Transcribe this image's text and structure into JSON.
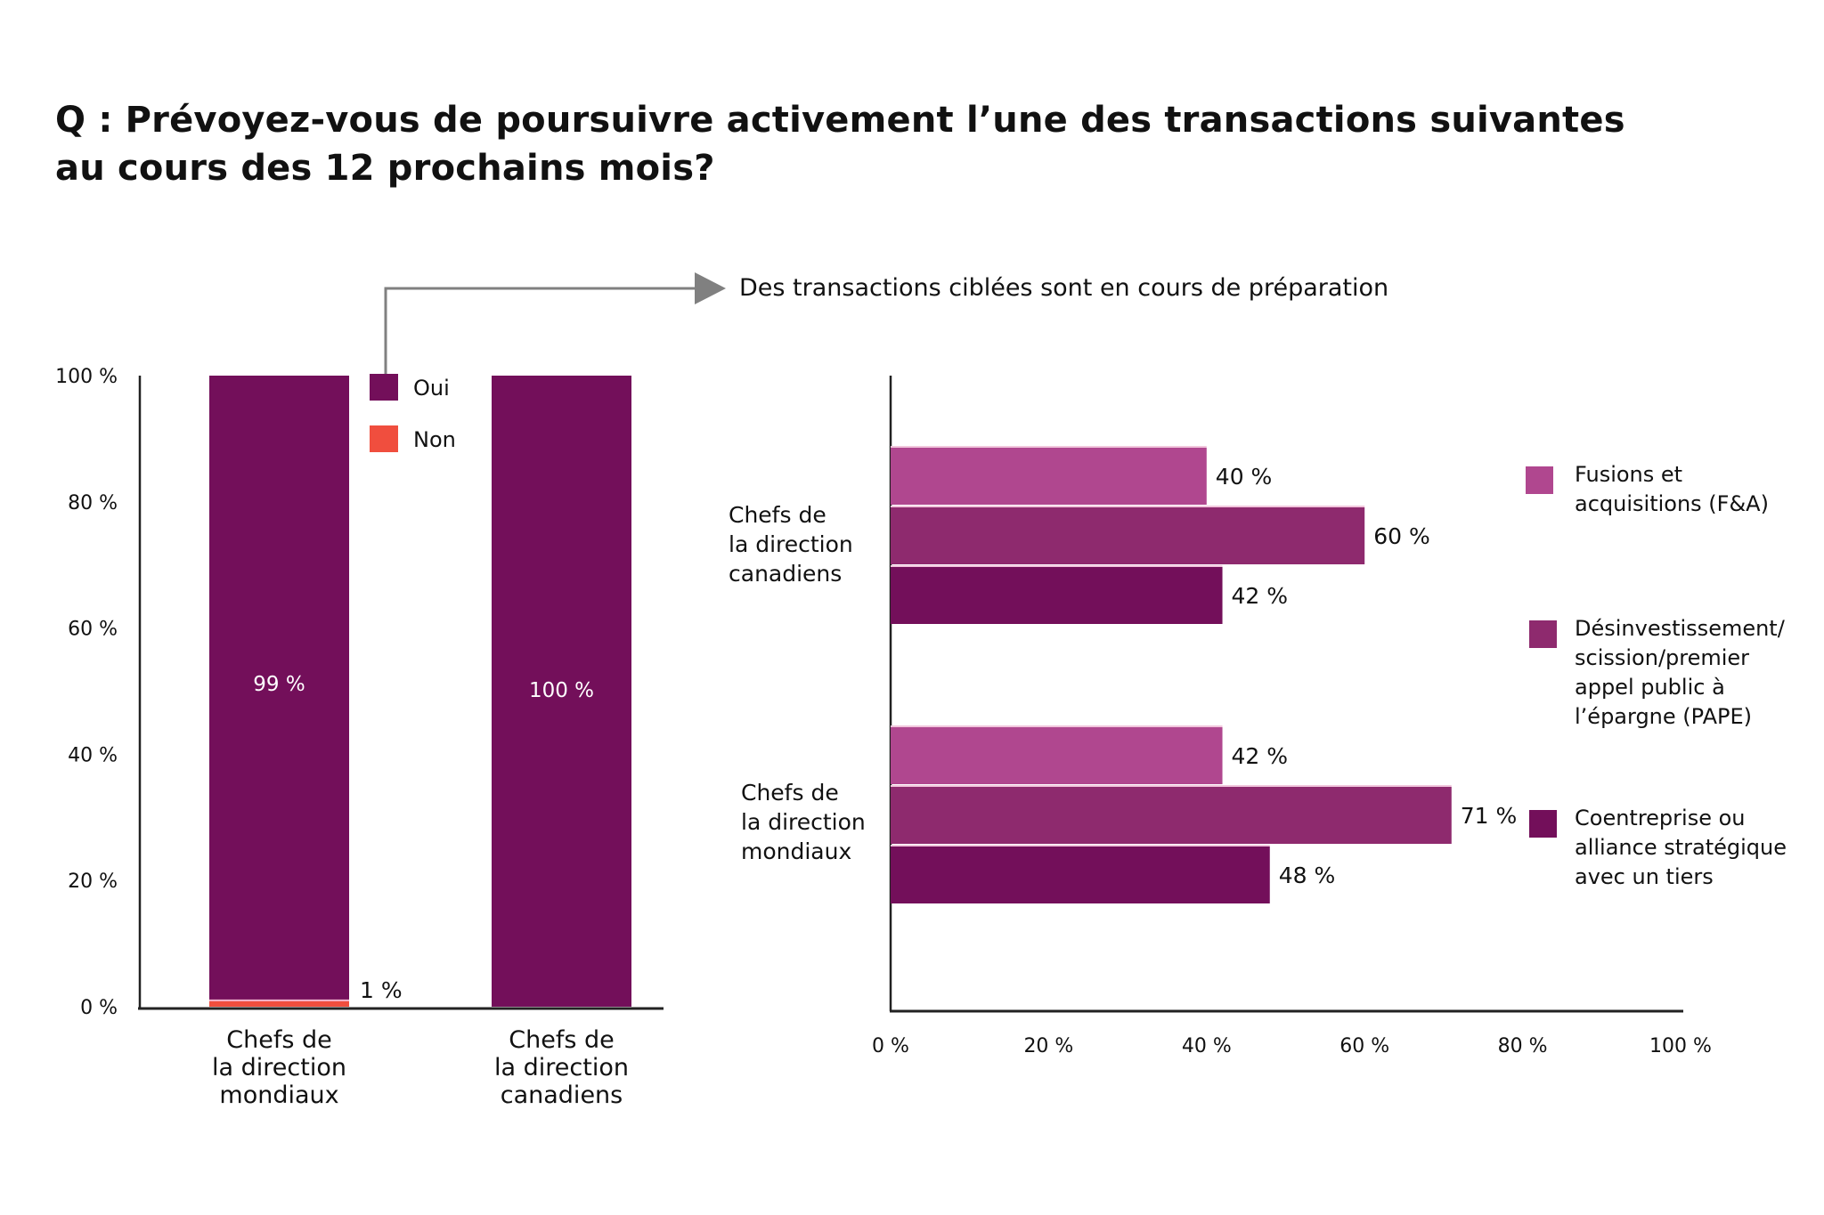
{
  "title": {
    "line1": "Q : Prévoyez-vous de poursuivre activement l’une des transactions suivantes",
    "line2": "au cours des 12 prochains mois?"
  },
  "annotation": "Des transactions ciblées sont en cours de préparation",
  "colors": {
    "oui": "#730F5A",
    "non": "#F04E3E",
    "fa": "#B0478F",
    "desinvest": "#8E2A6E",
    "coentreprise": "#730F5A",
    "axis": "#222222",
    "arrow": "#808080"
  },
  "chart_data": [
    {
      "type": "bar",
      "stacked": true,
      "orientation": "vertical",
      "categories": [
        [
          "Chefs de",
          "la direction",
          "mondiaux"
        ],
        [
          "Chefs de",
          "la direction",
          "canadiens"
        ]
      ],
      "series": [
        {
          "name": "Oui",
          "color_key": "oui",
          "values": [
            99,
            100
          ],
          "labels": [
            "99 %",
            "100 %"
          ]
        },
        {
          "name": "Non",
          "color_key": "non",
          "values": [
            1,
            0
          ],
          "labels": [
            "1 %",
            ""
          ]
        }
      ],
      "yticks": [
        "0 %",
        "20 %",
        "40 %",
        "60 %",
        "80 %",
        "100 %"
      ],
      "ylim": [
        0,
        100
      ],
      "legend": [
        "Oui",
        "Non"
      ],
      "legend_position": "top-center",
      "grid": false
    },
    {
      "type": "bar",
      "orientation": "horizontal",
      "groups": [
        {
          "label": [
            "Chefs de",
            "la direction",
            "canadiens"
          ],
          "values": [
            40,
            60,
            42
          ],
          "labels": [
            "40 %",
            "60 %",
            "42 %"
          ]
        },
        {
          "label": [
            "Chefs de",
            "la direction",
            "mondiaux"
          ],
          "values": [
            42,
            71,
            48
          ],
          "labels": [
            "42 %",
            "71 %",
            "48 %"
          ]
        }
      ],
      "series": [
        {
          "name": [
            "Fusions et",
            "acquisitions (F&A)"
          ],
          "color_key": "fa"
        },
        {
          "name": [
            "Désinvestissement/",
            "scission/premier",
            "appel public à",
            "l’épargne (PAPE)"
          ],
          "color_key": "desinvest"
        },
        {
          "name": [
            "Coentreprise ou",
            "alliance stratégique",
            "avec un tiers"
          ],
          "color_key": "coentreprise"
        }
      ],
      "xticks": [
        "0 %",
        "20 %",
        "40 %",
        "60 %",
        "80 %",
        "100 %"
      ],
      "xlim": [
        0,
        100
      ],
      "legend_position": "right",
      "grid": false
    }
  ]
}
